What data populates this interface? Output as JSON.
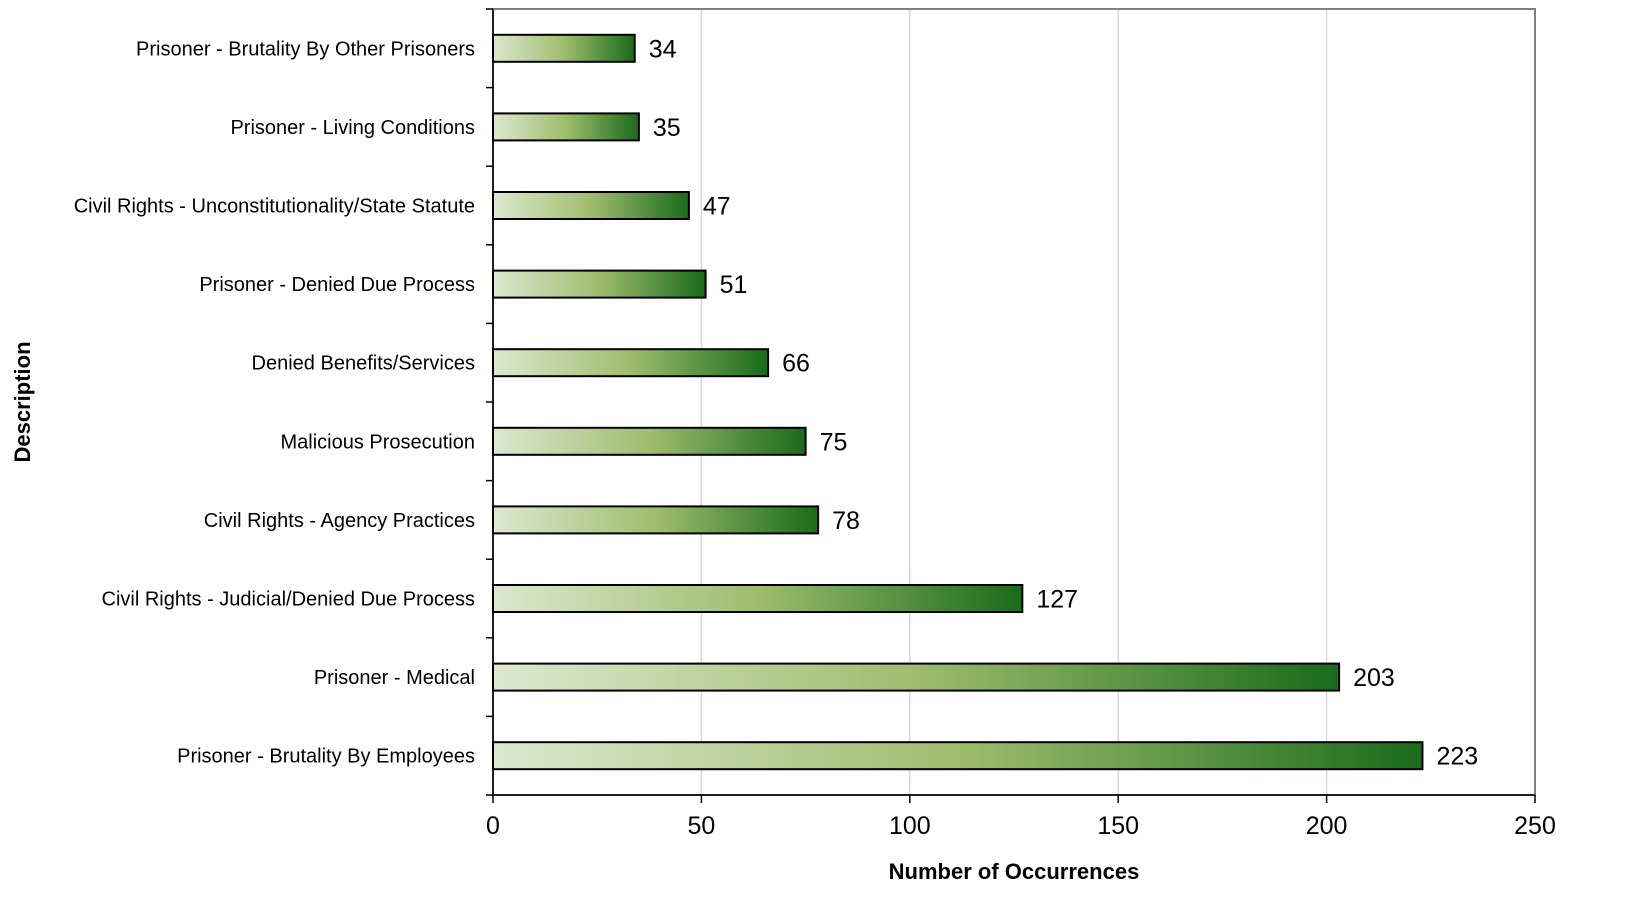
{
  "chart_data": {
    "type": "bar",
    "orientation": "horizontal",
    "categories": [
      "Prisoner - Brutality By Other Prisoners",
      "Prisoner - Living Conditions",
      "Civil Rights - Unconstitutionality/State Statute",
      "Prisoner - Denied Due Process",
      "Denied Benefits/Services",
      "Malicious Prosecution",
      "Civil Rights - Agency Practices",
      "Civil Rights - Judicial/Denied Due Process",
      "Prisoner - Medical",
      "Prisoner - Brutality By Employees"
    ],
    "values": [
      34,
      35,
      47,
      51,
      66,
      75,
      78,
      127,
      203,
      223
    ],
    "value_labels": [
      "34",
      "35",
      "47",
      "51",
      "66",
      "75",
      "78",
      "127",
      "203",
      "223"
    ],
    "xlabel": "Number of Occurrences",
    "ylabel": "Description",
    "xlim": [
      0,
      250
    ],
    "xticks": [
      0,
      50,
      100,
      150,
      200,
      250
    ],
    "xtick_labels": [
      "0",
      "50",
      "100",
      "150",
      "200",
      "250"
    ],
    "grid": "vertical",
    "legend": "none",
    "colors": {
      "bar_gradient_start": "#dde8cf",
      "bar_gradient_mid": "#9ebd6e",
      "bar_gradient_end": "#196b1a",
      "bar_border": "#000000",
      "gridline": "#d9d9d9",
      "frame": "#808080"
    }
  }
}
